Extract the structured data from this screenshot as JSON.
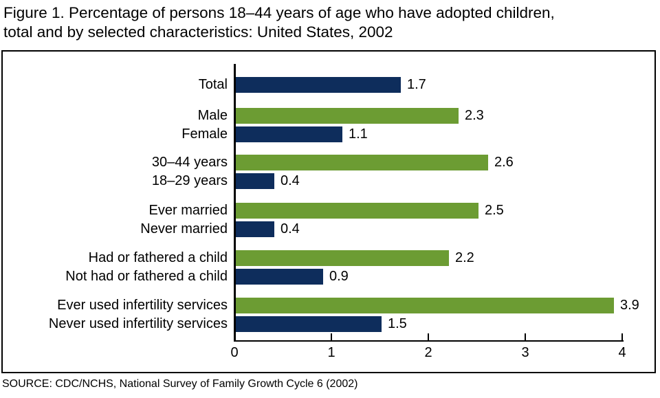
{
  "figure_title": {
    "lines": [
      "Figure 1. Percentage of persons 18–44 years of age who have adopted children,",
      "total and by selected characteristics: United States, 2002"
    ]
  },
  "source_note": "SOURCE: CDC/NCHS, National Survey of Family Growth Cycle 6 (2002)",
  "chart_data": {
    "type": "bar",
    "orientation": "horizontal",
    "title": "Figure 1. Percentage of persons 18–44 years of age who have adopted children, total and by selected characteristics: United States, 2002",
    "xlabel": "",
    "ylabel": "",
    "xlim": [
      0,
      4
    ],
    "xticks": [
      0,
      1,
      2,
      3,
      4
    ],
    "grid": false,
    "legend_position": "none",
    "value_labels_shown": true,
    "colors": {
      "navy": "#0E2D5C",
      "green": "#6C9C33"
    },
    "groups": [
      {
        "bars": [
          {
            "label": "Total",
            "value": 1.7,
            "color": "navy"
          }
        ]
      },
      {
        "bars": [
          {
            "label": "Male",
            "value": 2.3,
            "color": "green"
          },
          {
            "label": "Female",
            "value": 1.1,
            "color": "navy"
          }
        ]
      },
      {
        "bars": [
          {
            "label": "30–44 years",
            "value": 2.6,
            "color": "green"
          },
          {
            "label": "18–29 years",
            "value": 0.4,
            "color": "navy"
          }
        ]
      },
      {
        "bars": [
          {
            "label": "Ever married",
            "value": 2.5,
            "color": "green"
          },
          {
            "label": "Never married",
            "value": 0.4,
            "color": "navy"
          }
        ]
      },
      {
        "bars": [
          {
            "label": "Had or fathered a child",
            "value": 2.2,
            "color": "green"
          },
          {
            "label": "Not had or fathered a child",
            "value": 0.9,
            "color": "navy"
          }
        ]
      },
      {
        "bars": [
          {
            "label": "Ever used infertility services",
            "value": 3.9,
            "color": "green"
          },
          {
            "label": "Never used infertility services",
            "value": 1.5,
            "color": "navy"
          }
        ]
      }
    ]
  }
}
